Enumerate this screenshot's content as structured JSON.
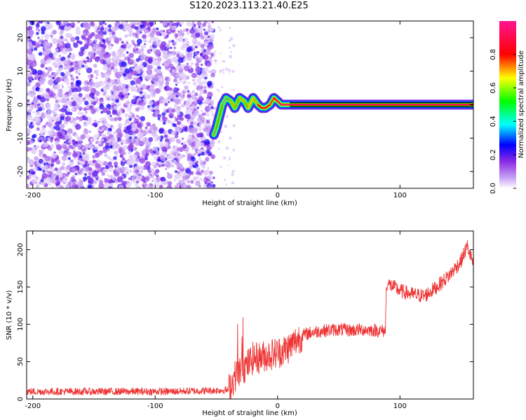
{
  "title": "S120.2023.113.21.40.E25",
  "chart_data": [
    {
      "type": "heatmap",
      "xlabel": "Height of straight line (km)",
      "ylabel": "Frequency (Hz)",
      "xlim": [
        -205,
        160
      ],
      "ylim": [
        -25,
        25
      ],
      "x_ticks": [
        -200,
        -100,
        0,
        100
      ],
      "y_ticks": [
        -20,
        -10,
        0,
        10,
        20
      ],
      "colorbar": {
        "label": "Normalized spectral amplitude",
        "range": [
          0,
          1
        ],
        "ticks": [
          "0.0",
          "0.2",
          "0.4",
          "0.6",
          "0.8"
        ],
        "colormap": [
          "#ffffff",
          "#8a2be2",
          "#0000ff",
          "#00ffff",
          "#00ff00",
          "#ffff00",
          "#ff0000",
          "#ff1493"
        ]
      },
      "noise_region_x": [
        -205,
        -52
      ],
      "ridge": {
        "x": [
          -52,
          -50,
          -45,
          -42,
          -38,
          -35,
          -31,
          -27,
          -24,
          -20,
          -16,
          -13,
          -10,
          -6,
          -3,
          0,
          3,
          6,
          10,
          160
        ],
        "freq": [
          -9,
          -7,
          0,
          2,
          1,
          -1,
          2,
          1,
          -1,
          2,
          0,
          -1,
          -1,
          0,
          2,
          1,
          0,
          0,
          0,
          0
        ],
        "amplitude": [
          0.45,
          0.5,
          0.4,
          0.45,
          0.6,
          0.55,
          0.6,
          0.55,
          0.65,
          0.6,
          0.8,
          0.85,
          0.85,
          0.75,
          0.9,
          0.95,
          1.0,
          1.0,
          1.0,
          1.0
        ]
      }
    },
    {
      "type": "line",
      "xlabel": "Height of straight line (km)",
      "ylabel": "SNR (10 * v/v)",
      "xlim": [
        -205,
        160
      ],
      "ylim": [
        0,
        225
      ],
      "x_ticks": [
        -200,
        -100,
        0,
        100
      ],
      "y_ticks": [
        0,
        50,
        100,
        150,
        200
      ],
      "series": [
        {
          "color": "#ee3333",
          "x": [
            -205,
            -180,
            -150,
            -120,
            -90,
            -60,
            -40,
            -35,
            -30,
            -25,
            -20,
            -15,
            -10,
            -5,
            0,
            5,
            10,
            15,
            20,
            25,
            30,
            40,
            50,
            60,
            70,
            80,
            88,
            89,
            95,
            100,
            110,
            120,
            130,
            140,
            150,
            155,
            160
          ],
          "values": [
            10,
            10,
            10,
            10,
            10,
            11,
            12,
            30,
            40,
            45,
            55,
            55,
            58,
            60,
            62,
            65,
            70,
            78,
            85,
            88,
            90,
            92,
            93,
            92,
            93,
            92,
            91,
            155,
            150,
            145,
            140,
            138,
            150,
            165,
            185,
            205,
            180
          ]
        }
      ]
    }
  ]
}
